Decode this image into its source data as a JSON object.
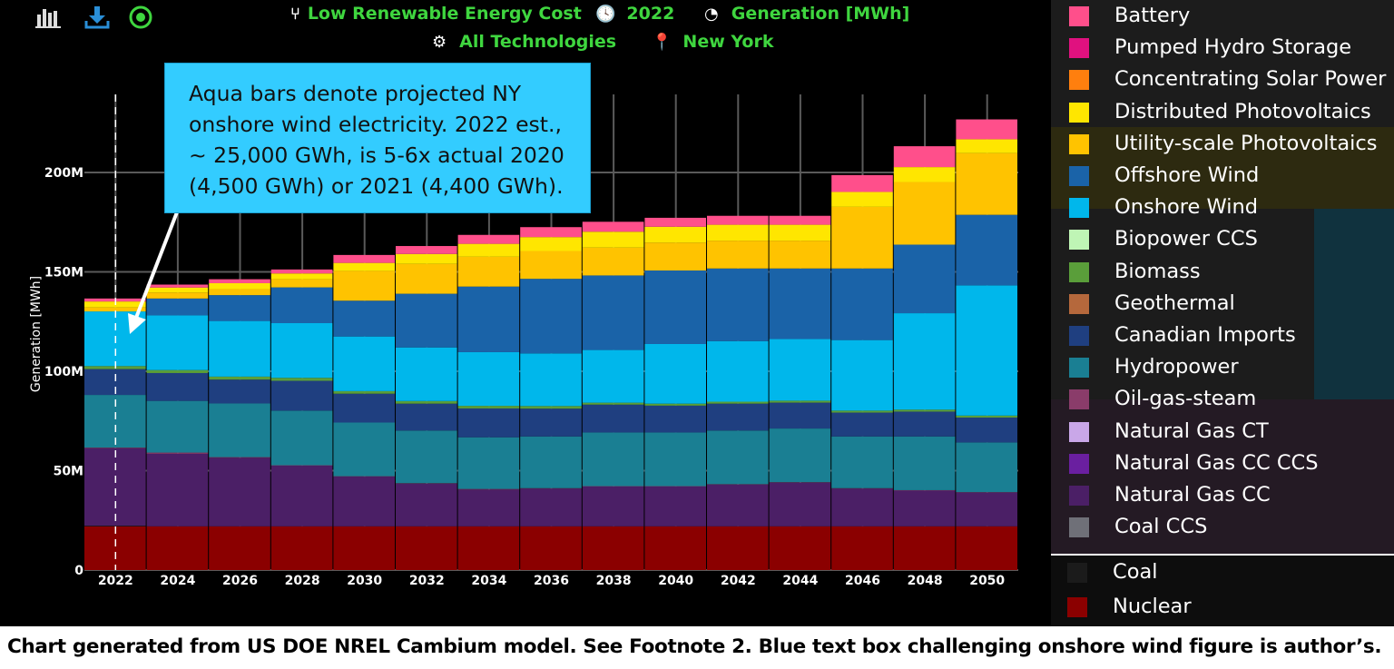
{
  "header": {
    "scenario": "Low Renewable Energy Cost",
    "year": "2022",
    "metric": "Generation [MWh]",
    "technologies": "All Technologies",
    "region": "New York"
  },
  "callout": {
    "text": "Aqua bars denote projected NY onshore wind electricity. 2022 est., ~ 25,000 GWh, is 5-6x actual 2020 (4,500 GWh) or 2021 (4,400 GWh)."
  },
  "caption": "Chart generated from US DOE NREL Cambium model. See Footnote 2. Blue text box challenging onshore wind figure is author’s.",
  "legend": {
    "items": [
      {
        "label": "Battery",
        "color": "#ff4f8b"
      },
      {
        "label": "Pumped Hydro Storage",
        "color": "#e0117f"
      },
      {
        "label": "Concentrating Solar Power",
        "color": "#ff7f0e"
      },
      {
        "label": "Distributed Photovoltaics",
        "color": "#ffe600"
      },
      {
        "label": "Utility-scale Photovoltaics",
        "color": "#ffc300"
      },
      {
        "label": "Offshore Wind",
        "color": "#1a63a8"
      },
      {
        "label": "Onshore Wind",
        "color": "#00b7eb"
      },
      {
        "label": "Biopower CCS",
        "color": "#bff5b5"
      },
      {
        "label": "Biomass",
        "color": "#5a9e3a"
      },
      {
        "label": "Geothermal",
        "color": "#b5683c"
      },
      {
        "label": "Canadian Imports",
        "color": "#1f3f80"
      },
      {
        "label": "Hydropower",
        "color": "#1a7f93"
      },
      {
        "label": "Oil-gas-steam",
        "color": "#8a3c6a"
      },
      {
        "label": "Natural Gas CT",
        "color": "#c9a7e8"
      },
      {
        "label": "Natural Gas CC CCS",
        "color": "#6a1fa0"
      },
      {
        "label": "Natural Gas CC",
        "color": "#4b1f66"
      },
      {
        "label": "Coal CCS",
        "color": "#6f7078"
      }
    ],
    "lower_items": [
      {
        "label": "Coal",
        "color": "#1b1b1b"
      },
      {
        "label": "Nuclear",
        "color": "#8b0000"
      }
    ]
  },
  "chart_data": {
    "type": "bar",
    "stacked": true,
    "ylabel": "Generation [MWh]",
    "ylim": [
      0,
      228
    ],
    "yticks": [
      0,
      50,
      100,
      150,
      200
    ],
    "ytick_labels": [
      "0",
      "50M",
      "100M",
      "150M",
      "200M"
    ],
    "grid": true,
    "selected_year": "2022",
    "categories": [
      "2022",
      "2024",
      "2026",
      "2028",
      "2030",
      "2032",
      "2034",
      "2036",
      "2038",
      "2040",
      "2042",
      "2044",
      "2046",
      "2048",
      "2050"
    ],
    "series": [
      {
        "name": "Nuclear",
        "color": "#8b0000",
        "values": [
          22,
          22,
          22,
          22,
          22,
          22,
          22,
          22,
          22,
          22,
          22,
          22,
          22,
          22,
          22
        ]
      },
      {
        "name": "Coal",
        "color": "#1b1b1b",
        "values": [
          0.3,
          0,
          0,
          0,
          0,
          0,
          0,
          0,
          0,
          0,
          0,
          0,
          0,
          0,
          0
        ]
      },
      {
        "name": "Natural Gas CC",
        "color": "#4b1f66",
        "values": [
          39,
          36.5,
          34.5,
          30.5,
          25,
          21.5,
          18.5,
          19,
          20,
          20,
          21,
          22,
          19,
          18,
          17
        ]
      },
      {
        "name": "Oil-gas-steam",
        "color": "#8a3c6a",
        "values": [
          0.3,
          0.6,
          0.3,
          0.2,
          0.2,
          0.2,
          0.3,
          0.2,
          0.2,
          0.2,
          0.2,
          0.2,
          0.2,
          0.2,
          0.2
        ]
      },
      {
        "name": "Hydropower",
        "color": "#1a7f93",
        "values": [
          26.5,
          26,
          27,
          27.5,
          27,
          26.5,
          26,
          26,
          27,
          27,
          27,
          27,
          26,
          27,
          25
        ]
      },
      {
        "name": "Canadian Imports",
        "color": "#1f3f80",
        "values": [
          13,
          14,
          12,
          15,
          14.5,
          13.5,
          14.5,
          14,
          14,
          13.5,
          13.5,
          13,
          12,
          12.5,
          12.5
        ]
      },
      {
        "name": "Biomass",
        "color": "#5a9e3a",
        "values": [
          1.5,
          1.5,
          1.5,
          1.5,
          1.3,
          1.3,
          1.3,
          1.3,
          1,
          1,
          1,
          1,
          1,
          1,
          1
        ]
      },
      {
        "name": "Onshore Wind",
        "color": "#00b7eb",
        "values": [
          27.5,
          27.5,
          28,
          27.5,
          27.5,
          27,
          27,
          26.5,
          26.5,
          30,
          30.5,
          31,
          35.5,
          48.5,
          65.5
        ]
      },
      {
        "name": "Offshore Wind",
        "color": "#1a63a8",
        "values": [
          0,
          8.5,
          13,
          18,
          18,
          27,
          33,
          37.5,
          37.5,
          37,
          36.5,
          35.5,
          36,
          34.5,
          35.5
        ]
      },
      {
        "name": "Utility-scale Photovoltaics",
        "color": "#ffc300",
        "values": [
          2,
          3,
          3,
          4,
          15,
          15,
          15,
          14,
          14,
          14,
          14,
          14,
          31,
          31.5,
          31
        ]
      },
      {
        "name": "Distributed Photovoltaics",
        "color": "#ffe600",
        "values": [
          3,
          2.5,
          3,
          3,
          4,
          5,
          6.5,
          7,
          8,
          8,
          8,
          8,
          7.5,
          7.5,
          7
        ]
      },
      {
        "name": "Battery",
        "color": "#ff4f8b",
        "values": [
          1.5,
          1.5,
          2,
          2,
          4,
          4,
          4.5,
          5,
          5,
          4.5,
          4.5,
          4.5,
          8.5,
          10.5,
          10
        ]
      }
    ]
  }
}
